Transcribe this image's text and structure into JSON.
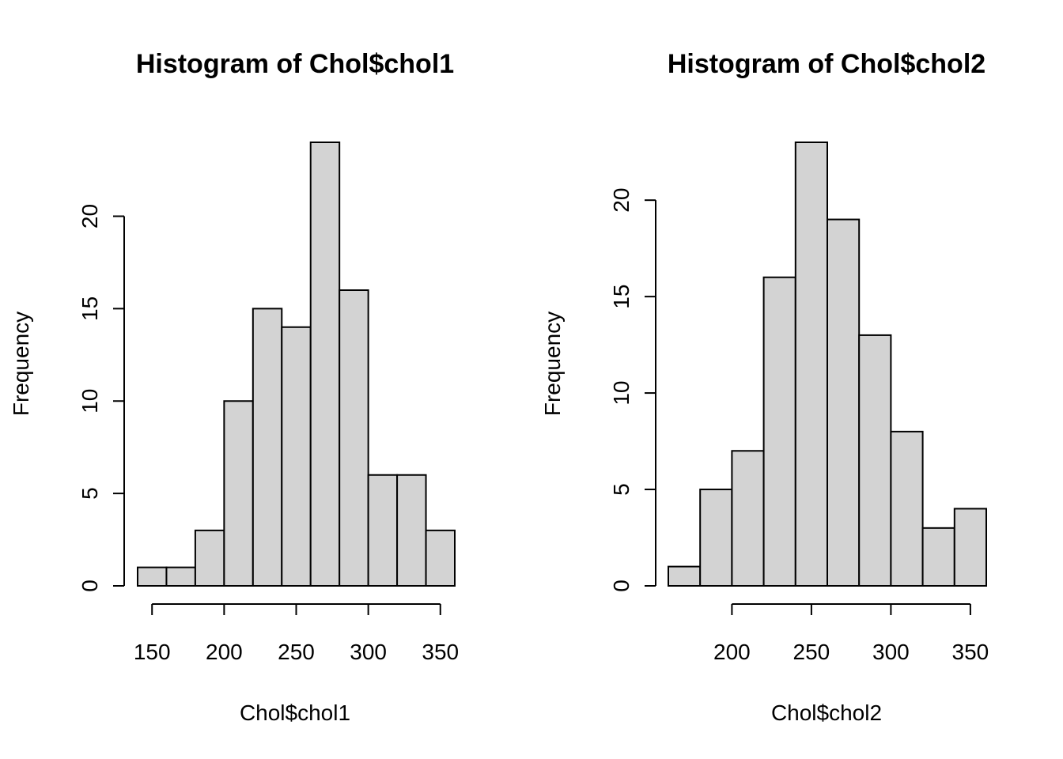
{
  "chart_data": [
    {
      "type": "bar",
      "title": "Histogram of Chol$chol1",
      "xlabel": "Chol$chol1",
      "ylabel": "Frequency",
      "bins": [
        [
          140,
          160
        ],
        [
          160,
          180
        ],
        [
          180,
          200
        ],
        [
          200,
          220
        ],
        [
          220,
          240
        ],
        [
          240,
          260
        ],
        [
          260,
          280
        ],
        [
          280,
          300
        ],
        [
          300,
          320
        ],
        [
          320,
          340
        ],
        [
          340,
          360
        ]
      ],
      "values": [
        1,
        1,
        3,
        10,
        15,
        14,
        24,
        16,
        6,
        6,
        3
      ],
      "x_ticks": [
        150,
        200,
        250,
        300,
        350
      ],
      "y_ticks": [
        0,
        5,
        10,
        15,
        20
      ],
      "xlim": [
        140,
        360
      ],
      "ylim": [
        0,
        24
      ]
    },
    {
      "type": "bar",
      "title": "Histogram of Chol$chol2",
      "xlabel": "Chol$chol2",
      "ylabel": "Frequency",
      "bins": [
        [
          160,
          180
        ],
        [
          180,
          200
        ],
        [
          200,
          220
        ],
        [
          220,
          240
        ],
        [
          240,
          260
        ],
        [
          260,
          280
        ],
        [
          280,
          300
        ],
        [
          300,
          320
        ],
        [
          320,
          340
        ],
        [
          340,
          360
        ]
      ],
      "values": [
        1,
        5,
        7,
        16,
        23,
        19,
        13,
        8,
        3,
        4
      ],
      "x_ticks": [
        200,
        250,
        300,
        350
      ],
      "y_ticks": [
        0,
        5,
        10,
        15,
        20
      ],
      "xlim": [
        160,
        360
      ],
      "ylim": [
        0,
        23
      ]
    }
  ]
}
